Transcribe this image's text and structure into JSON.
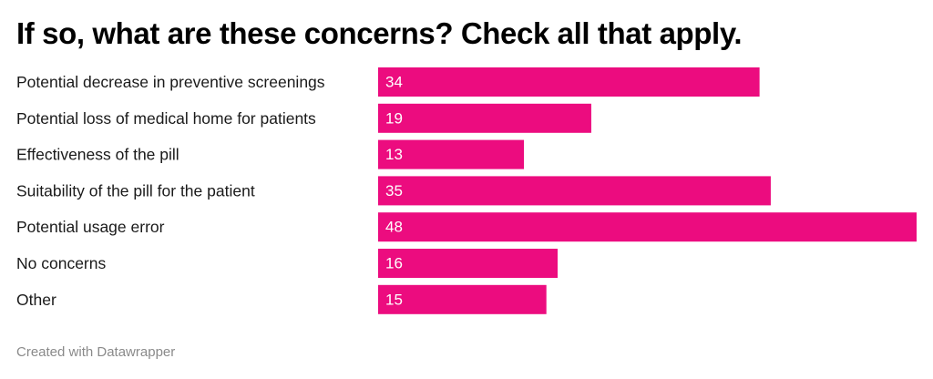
{
  "title": "If so, what are these concerns? Check all that apply.",
  "footer": "Created with Datawrapper",
  "colors": {
    "bar": "#ec0c7f",
    "value_text": "#ffffff",
    "label_text": "#1a1a1a"
  },
  "chart_data": {
    "type": "bar",
    "orientation": "horizontal",
    "title": "If so, what are these concerns? Check all that apply.",
    "categories": [
      "Potential decrease in preventive screenings",
      "Potential loss of medical home for patients",
      "Effectiveness of the pill",
      "Suitability of the pill for the patient",
      "Potential usage error",
      "No concerns",
      "Other"
    ],
    "values": [
      34,
      19,
      13,
      35,
      48,
      16,
      15
    ],
    "xlim": [
      0,
      48
    ],
    "grid": false,
    "legend": "none",
    "data_labels": "inside-left"
  }
}
